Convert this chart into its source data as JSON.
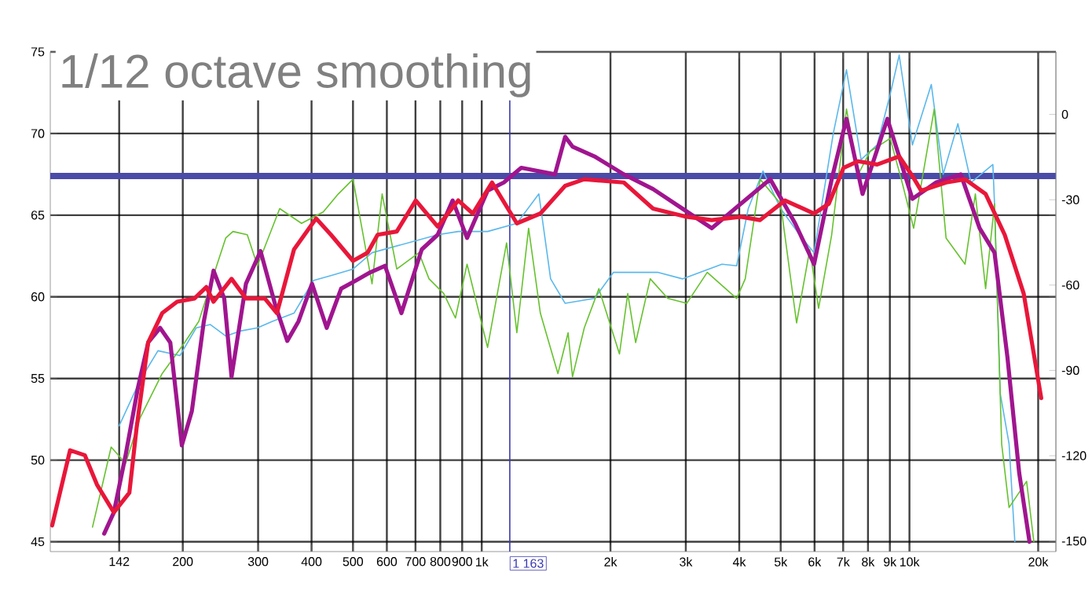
{
  "chart_data": {
    "type": "line",
    "title": "1/12 octave smoothing",
    "log": "x",
    "grid": true,
    "xlim": [
      98,
      22000
    ],
    "xticks": [
      142,
      200,
      300,
      400,
      500,
      600,
      700,
      800,
      900,
      {
        "value": 1000,
        "label": "1k"
      },
      {
        "value": 2000,
        "label": "2k"
      },
      {
        "value": 3000,
        "label": "3k"
      },
      {
        "value": 4000,
        "label": "4k"
      },
      {
        "value": 5000,
        "label": "5k"
      },
      {
        "value": 6000,
        "label": "6k"
      },
      {
        "value": 7000,
        "label": "7k"
      },
      {
        "value": 8000,
        "label": "8k"
      },
      {
        "value": 9000,
        "label": "9k"
      },
      {
        "value": 10000,
        "label": "10k"
      },
      {
        "value": 20000,
        "label": "20k"
      }
    ],
    "ylim": [
      44.4,
      75
    ],
    "yticks": [
      45,
      50,
      55,
      60,
      65,
      70,
      75
    ],
    "y2lim": [
      -153.7,
      22
    ],
    "y2ticks": [
      0,
      -30,
      -60,
      -90,
      -120,
      -150
    ],
    "ref_lines": [
      {
        "axis": "x",
        "value": 1163,
        "label": "1 163",
        "color": "#3a3ab0"
      },
      {
        "axis": "y",
        "value": 67.4,
        "color": "#4a4aa8"
      }
    ],
    "series": [
      {
        "color": "#5ab8ec",
        "x": [
          142,
          159,
          175,
          197,
          215,
          232,
          252,
          272,
          299,
          324,
          364,
          404,
          444,
          500,
          554,
          789,
          881,
          1032,
          1208,
          1360,
          1449,
          1567,
          1835,
          2033,
          2576,
          2946,
          3645,
          3945,
          4199,
          4545,
          4999,
          5534,
          5985,
          6637,
          7125,
          7710,
          8407,
          9016,
          9463,
          10160,
          11250,
          11990,
          12980,
          13930,
          15670,
          15810,
          16300,
          17100,
          17640
        ],
        "values": [
          52.1,
          54.9,
          56.7,
          56.4,
          58.1,
          58.3,
          57.6,
          57.9,
          58.1,
          58.5,
          59.0,
          61.0,
          61.3,
          61.7,
          62.7,
          63.8,
          64.0,
          64.0,
          64.5,
          66.3,
          61.1,
          59.6,
          59.9,
          61.5,
          61.5,
          61.1,
          62.0,
          61.9,
          65.4,
          67.7,
          65.4,
          63.8,
          62.7,
          70.0,
          73.9,
          68.4,
          69.3,
          72.4,
          74.8,
          69.3,
          73.0,
          67.5,
          70.6,
          67.0,
          68.1,
          65.7,
          54.1,
          51.0,
          45.0
        ]
      },
      {
        "color": "#66c22e",
        "x": [
          123,
          136,
          147,
          159,
          179,
          202,
          218,
          240,
          252,
          262,
          283,
          299,
          337,
          379,
          426,
          462,
          500,
          554,
          585,
          633,
          713,
          753,
          815,
          868,
          924,
          1032,
          1143,
          1208,
          1287,
          1371,
          1507,
          1592,
          1630,
          1737,
          1879,
          2099,
          2195,
          2290,
          2477,
          2723,
          3015,
          3367,
          3945,
          4131,
          4475,
          4999,
          5447,
          5848,
          6132,
          6580,
          7125,
          7589,
          8088,
          9016,
          9614,
          10230,
          11430,
          12180,
          13490,
          14260,
          15070,
          15810,
          16430,
          17100,
          18790,
          19540
        ],
        "values": [
          45.9,
          50.8,
          49.8,
          52.6,
          55.3,
          57.2,
          58.5,
          61.9,
          63.6,
          64.0,
          63.8,
          61.9,
          65.4,
          64.5,
          65.2,
          66.3,
          67.2,
          60.8,
          66.3,
          61.7,
          62.7,
          61.1,
          60.2,
          58.7,
          62.0,
          56.9,
          63.3,
          57.8,
          64.2,
          59.0,
          55.3,
          57.8,
          55.1,
          58.1,
          60.5,
          56.5,
          60.2,
          57.2,
          61.1,
          59.9,
          59.6,
          61.5,
          59.9,
          61.1,
          67.2,
          65.7,
          58.4,
          62.9,
          59.3,
          63.8,
          71.5,
          67.5,
          68.9,
          69.7,
          67.0,
          64.2,
          71.5,
          63.6,
          62.0,
          66.3,
          60.5,
          65.7,
          51.0,
          47.1,
          48.7,
          45.0
        ]
      },
      {
        "color": "#a0158f",
        "x": [
          131,
          138,
          147,
          157,
          166,
          177,
          187,
          199,
          210,
          224,
          236,
          250,
          260,
          281,
          304,
          329,
          351,
          373,
          401,
          434,
          469,
          508,
          549,
          594,
          649,
          724,
          789,
          855,
          924,
          1032,
          1126,
          1237,
          1483,
          1567,
          1630,
          1835,
          2149,
          2515,
          2946,
          3449,
          4036,
          4727,
          5404,
          5985,
          6580,
          7125,
          7770,
          8880,
          10160,
          11530,
          13180,
          14590,
          15810,
          16950,
          18060,
          19090
        ],
        "values": [
          45.5,
          46.8,
          50.3,
          54.4,
          57.2,
          58.1,
          57.2,
          50.9,
          53.0,
          58.5,
          61.6,
          59.9,
          55.1,
          60.8,
          62.8,
          59.5,
          57.3,
          58.5,
          60.8,
          58.1,
          60.5,
          61.0,
          61.5,
          61.9,
          59.0,
          62.9,
          63.8,
          65.9,
          63.6,
          66.5,
          67.0,
          67.9,
          67.5,
          69.8,
          69.2,
          68.6,
          67.5,
          66.6,
          65.4,
          64.2,
          65.7,
          67.2,
          64.5,
          62.0,
          67.2,
          70.9,
          66.3,
          70.9,
          66.0,
          67.0,
          67.5,
          64.2,
          62.7,
          56.3,
          49.2,
          45.0
        ]
      },
      {
        "color": "#e8173a",
        "x": [
          99,
          109,
          118,
          126,
          138,
          150,
          156,
          166,
          179,
          194,
          213,
          227,
          236,
          260,
          281,
          311,
          332,
          364,
          410,
          444,
          500,
          541,
          571,
          633,
          701,
          789,
          881,
          953,
          1057,
          1208,
          1371,
          1567,
          1737,
          2149,
          2515,
          3015,
          3449,
          4036,
          4475,
          5117,
          5985,
          6480,
          7015,
          7589,
          8407,
          9463,
          10160,
          10650,
          12180,
          13490,
          15070,
          16700,
          18500,
          20330
        ],
        "values": [
          46.0,
          50.6,
          50.3,
          48.5,
          46.8,
          48.0,
          52.0,
          57.2,
          59.0,
          59.7,
          59.9,
          60.6,
          59.7,
          61.1,
          59.9,
          59.9,
          59.0,
          62.9,
          64.8,
          63.8,
          62.2,
          62.7,
          63.8,
          64.0,
          65.9,
          64.3,
          65.9,
          65.1,
          67.0,
          64.5,
          65.1,
          66.8,
          67.2,
          67.0,
          65.4,
          64.9,
          64.7,
          64.9,
          64.7,
          65.9,
          65.1,
          65.7,
          67.9,
          68.3,
          68.1,
          68.6,
          67.4,
          66.5,
          67.0,
          67.2,
          66.3,
          63.8,
          60.2,
          53.8
        ]
      }
    ]
  }
}
